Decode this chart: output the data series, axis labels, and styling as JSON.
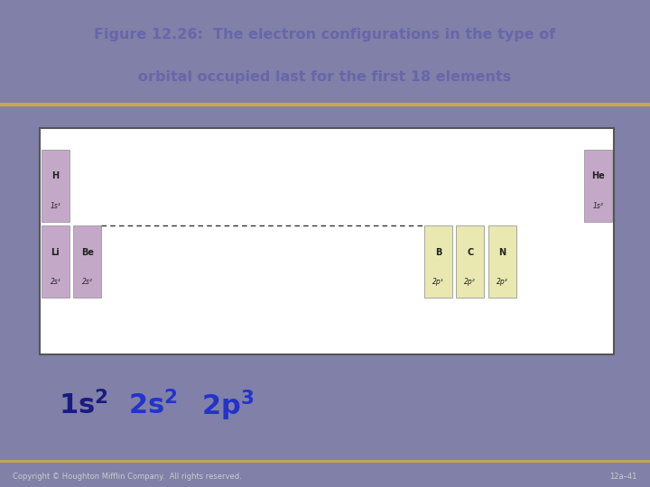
{
  "title_line1": "Figure 12.26:  The electron configurations in the type of",
  "title_line2": "orbital occupied last for the first 18 elements",
  "title_bg": "#d4c9a8",
  "title_border": "#c8a84b",
  "main_bg": "#8080a8",
  "table_bg": "#ffffff",
  "table_border": "#555555",
  "s_block_color": "#c4a8c8",
  "p_block_color": "#e8e8b0",
  "elements": [
    {
      "symbol": "H",
      "config": "1s¹",
      "col": 0,
      "row": 0,
      "block": "s"
    },
    {
      "symbol": "He",
      "config": "1s²",
      "col": 17,
      "row": 0,
      "block": "s"
    },
    {
      "symbol": "Li",
      "config": "2s¹",
      "col": 0,
      "row": 1,
      "block": "s"
    },
    {
      "symbol": "Be",
      "config": "2s²",
      "col": 1,
      "row": 1,
      "block": "s"
    },
    {
      "symbol": "B",
      "config": "2p¹",
      "col": 12,
      "row": 1,
      "block": "p"
    },
    {
      "symbol": "C",
      "config": "2p²",
      "col": 13,
      "row": 1,
      "block": "p"
    },
    {
      "symbol": "N",
      "config": "2p³",
      "col": 14,
      "row": 1,
      "block": "p"
    }
  ],
  "formula_color_1s": "#1a1a80",
  "formula_color_2s": "#2233cc",
  "formula_color_2p": "#2233cc",
  "copyright": "Copyright © Houghton Mifflin Company.  All rights reserved.",
  "slide_num": "12a–41",
  "footer_bg": "#7070a0"
}
